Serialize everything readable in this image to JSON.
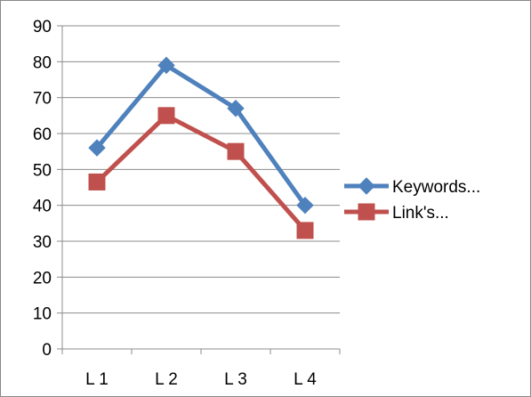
{
  "chart_data": {
    "type": "line",
    "categories": [
      "L 1",
      "L 2",
      "L 3",
      "L 4"
    ],
    "series": [
      {
        "name": "Keywords...",
        "values": [
          56,
          79,
          67,
          40
        ],
        "color": "#4f81bd",
        "marker": "diamond"
      },
      {
        "name": "Link's...",
        "values": [
          46.5,
          65,
          55,
          33
        ],
        "color": "#c0504d",
        "marker": "square"
      }
    ],
    "ylim": [
      0,
      90
    ],
    "yticks": [
      0,
      10,
      20,
      30,
      40,
      50,
      60,
      70,
      80,
      90
    ],
    "grid": true,
    "legend_position": "right",
    "title": "",
    "xlabel": "",
    "ylabel": ""
  }
}
